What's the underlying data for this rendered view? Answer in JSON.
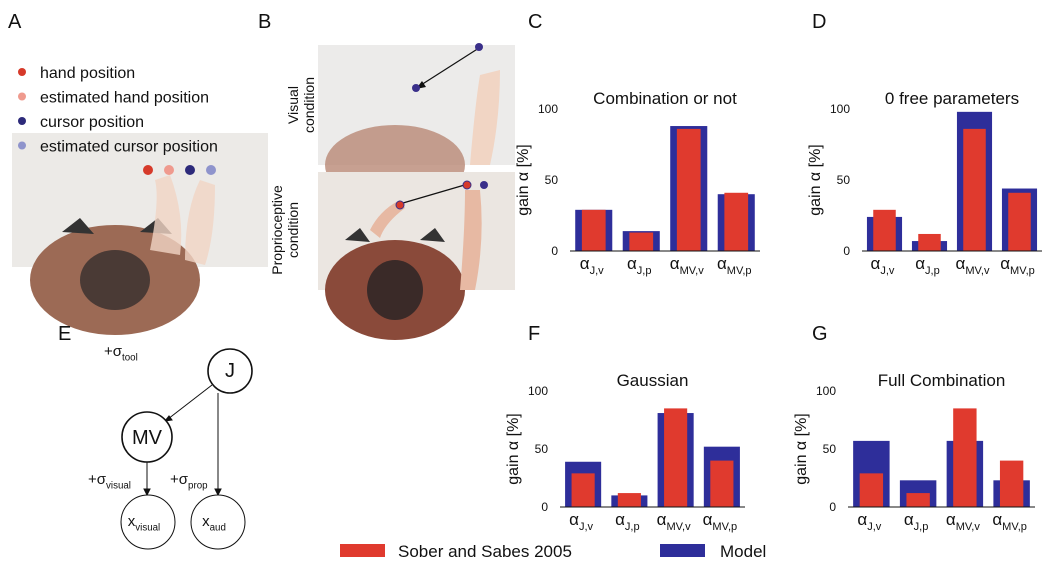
{
  "panel_labels": [
    "A",
    "B",
    "C",
    "D",
    "E",
    "F",
    "G"
  ],
  "panel_a": {
    "legend": [
      {
        "text": "hand position",
        "color": "#d63a2a"
      },
      {
        "text": "estimated hand position",
        "color": "#ef9a8e"
      },
      {
        "text": "cursor position",
        "color": "#2d2a7a"
      },
      {
        "text": "estimated cursor position",
        "color": "#8f94cc"
      }
    ]
  },
  "panel_b": {
    "conditions": [
      [
        "Visual",
        "condition"
      ],
      [
        "Proprioceptive",
        "condition"
      ]
    ]
  },
  "diagram": {
    "nodes": [
      {
        "label": "J"
      },
      {
        "label": "MV"
      },
      {
        "label": "x",
        "sub": "visual"
      },
      {
        "label": "x",
        "sub": "aud"
      }
    ],
    "edges": [
      {
        "label": "+σ",
        "sub": "tool"
      },
      {
        "label": "+σ",
        "sub": "visual"
      },
      {
        "label": "+σ",
        "sub": "prop"
      }
    ]
  },
  "legend": [
    {
      "name": "Sober and Sabes 2005",
      "color": "#e03a2e"
    },
    {
      "name": "Model",
      "color": "#2e2e9a"
    }
  ],
  "chart_data": [
    {
      "type": "bar",
      "title": "Combination or not",
      "y_label": "gain α [%]",
      "categories": [
        {
          "main": "α",
          "sub": "J,v"
        },
        {
          "main": "α",
          "sub": "J,p"
        },
        {
          "main": "α",
          "sub": "MV,v"
        },
        {
          "main": "α",
          "sub": "MV,p"
        }
      ],
      "series": [
        {
          "color": "#2e2e9a",
          "values": [
            29,
            14,
            88,
            40
          ]
        },
        {
          "color": "#e03a2e",
          "values": [
            29,
            13,
            86,
            41
          ]
        }
      ],
      "ylim": [
        0,
        100
      ],
      "yticks": [
        0,
        50,
        100
      ]
    },
    {
      "type": "bar",
      "title": "0 free parameters",
      "y_label": "gain α [%]",
      "categories": [
        {
          "main": "α",
          "sub": "J,v"
        },
        {
          "main": "α",
          "sub": "J,p"
        },
        {
          "main": "α",
          "sub": "MV,v"
        },
        {
          "main": "α",
          "sub": "MV,p"
        }
      ],
      "series": [
        {
          "color": "#2e2e9a",
          "values": [
            24,
            7,
            98,
            44
          ]
        },
        {
          "color": "#e03a2e",
          "values": [
            29,
            12,
            86,
            41
          ]
        }
      ],
      "ylim": [
        0,
        100
      ],
      "yticks": [
        0,
        50,
        100
      ]
    },
    {
      "type": "bar",
      "title": "Gaussian",
      "y_label": "gain α [%]",
      "categories": [
        {
          "main": "α",
          "sub": "J,v"
        },
        {
          "main": "α",
          "sub": "J,p"
        },
        {
          "main": "α",
          "sub": "MV,v"
        },
        {
          "main": "α",
          "sub": "MV,p"
        }
      ],
      "series": [
        {
          "color": "#2e2e9a",
          "values": [
            39,
            10,
            81,
            52
          ]
        },
        {
          "color": "#e03a2e",
          "values": [
            29,
            12,
            85,
            40
          ]
        }
      ],
      "ylim": [
        0,
        100
      ],
      "yticks": [
        0,
        50,
        100
      ]
    },
    {
      "type": "bar",
      "title": "Full Combination",
      "y_label": "gain α [%]",
      "categories": [
        {
          "main": "α",
          "sub": "J,v"
        },
        {
          "main": "α",
          "sub": "J,p"
        },
        {
          "main": "α",
          "sub": "MV,v"
        },
        {
          "main": "α",
          "sub": "MV,p"
        }
      ],
      "series": [
        {
          "color": "#2e2e9a",
          "values": [
            57,
            23,
            57,
            23
          ]
        },
        {
          "color": "#e03a2e",
          "values": [
            29,
            12,
            85,
            40
          ]
        }
      ],
      "ylim": [
        0,
        100
      ],
      "yticks": [
        0,
        50,
        100
      ]
    }
  ]
}
